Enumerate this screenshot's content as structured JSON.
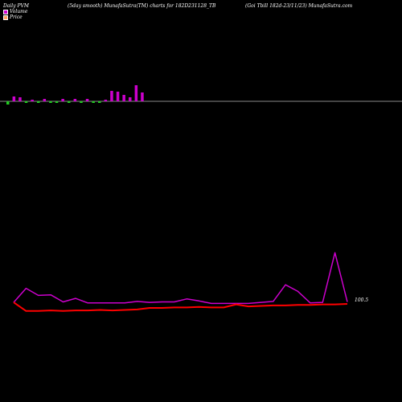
{
  "header": {
    "left": "Daily PVM",
    "middle": "(5day smooth) MunafaSutra(TM) charts for 182D231128_TB",
    "right": "(Goi  Tbill 182d-23/11/23) MunafaSutra.com"
  },
  "legend": {
    "volume_label": "Volume",
    "price_label": "Price",
    "volume_color": "#d000d0",
    "price_color": "#ffa060"
  },
  "colors": {
    "background": "#000000",
    "price_line": "#ff0000",
    "volume_line": "#cc00cc",
    "bar_up": "#cc00cc",
    "bar_down": "#22cc22",
    "bar_neutral": "#ff6666",
    "zero_line": "#888888"
  },
  "chart_data": [
    {
      "type": "bar",
      "title": "",
      "series": [
        {
          "values": [
            10,
            6,
            5,
            3,
            2,
            2,
            3,
            2,
            4,
            3,
            4,
            3,
            2,
            3,
            5,
            3,
            2,
            13,
            12,
            8,
            5,
            20,
            11
          ],
          "direction": [
            "down",
            "up",
            "up",
            "down",
            "up",
            "down",
            "up",
            "down",
            "down",
            "up",
            "down",
            "up",
            "down",
            "up",
            "down",
            "down",
            "up",
            "up",
            "up",
            "up",
            "up",
            "up",
            "up"
          ]
        }
      ]
    },
    {
      "type": "line",
      "title": "",
      "x": [
        1,
        2,
        3,
        4,
        5,
        6,
        7,
        8,
        9,
        10,
        11,
        12,
        13,
        14,
        15,
        16,
        17,
        18,
        19,
        20,
        21,
        22,
        23,
        24,
        25,
        26,
        27,
        28
      ],
      "series": [
        {
          "values": [
            100.4,
            103.2,
            101.8,
            101.9,
            100.5,
            101.2,
            100.3,
            100.3,
            100.3,
            100.3,
            100.6,
            100.4,
            100.5,
            100.5,
            101.1,
            100.7,
            100.2,
            100.2,
            100.2,
            100.2,
            100.4,
            100.6,
            103.9,
            102.6,
            100.3,
            100.4,
            110.3,
            100.5
          ],
          "color": "#cc00cc"
        },
        {
          "values": [
            100.4,
            98.7,
            98.7,
            98.8,
            98.7,
            98.8,
            98.8,
            98.9,
            98.8,
            98.9,
            99.0,
            99.3,
            99.3,
            99.4,
            99.4,
            99.5,
            99.4,
            99.4,
            100.0,
            99.6,
            99.7,
            99.8,
            99.8,
            99.9,
            99.9,
            100.0,
            100.0,
            100.1
          ],
          "color": "#ff0000"
        }
      ],
      "end_label": "100.5"
    }
  ]
}
